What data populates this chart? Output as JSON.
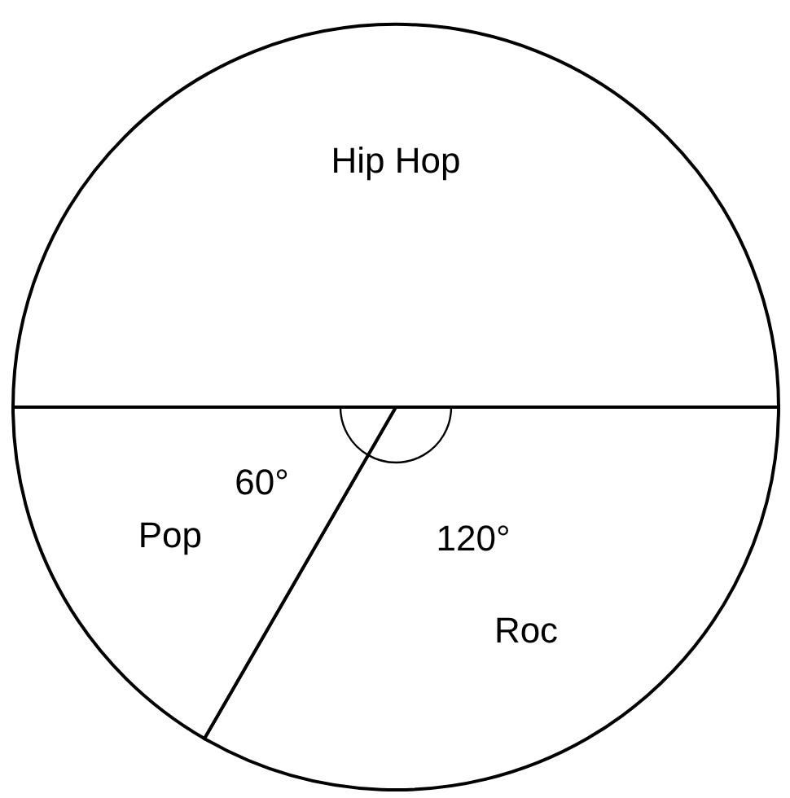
{
  "chart_data": {
    "type": "pie",
    "categories": [
      "Hip Hop",
      "Roc",
      "Pop"
    ],
    "values": [
      180,
      120,
      60
    ],
    "colors": [
      "#ffffff",
      "#ffffff",
      "#ffffff"
    ],
    "value_labels": [
      null,
      "120°",
      "60°"
    ]
  }
}
